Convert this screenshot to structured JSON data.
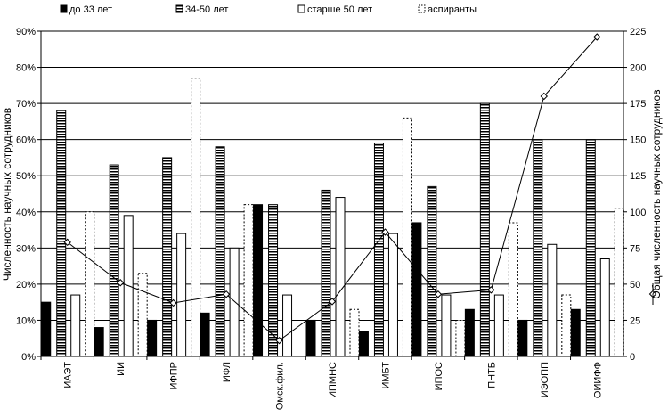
{
  "chart_data": {
    "type": "bar",
    "categories": [
      "ИАЭТ",
      "ИИ",
      "ИФПР",
      "ИФЛ",
      "Омск.фил.",
      "ИПМНС",
      "ИМБТ",
      "ИПОС",
      "ПНТБ",
      "ИЭОПП",
      "ОИИФФ"
    ],
    "series": [
      {
        "name": "до 33 лет",
        "values": [
          15,
          8,
          10,
          12,
          42,
          10,
          7,
          37,
          13,
          10,
          13
        ]
      },
      {
        "name": "34-50 лет",
        "values": [
          68,
          53,
          55,
          58,
          42,
          46,
          59,
          47,
          70,
          60,
          60
        ]
      },
      {
        "name": "старше 50 лет",
        "values": [
          17,
          39,
          34,
          30,
          17,
          44,
          34,
          17,
          17,
          31,
          27
        ]
      },
      {
        "name": "аспиранты",
        "values": [
          40,
          23,
          77,
          42,
          0,
          13,
          66,
          10,
          37,
          17,
          41
        ]
      }
    ],
    "line": {
      "name": "Общая численность научных сотрудников",
      "values": [
        79,
        51,
        37,
        43,
        11,
        38,
        86,
        43,
        46,
        180,
        221
      ]
    },
    "ylabel": "Численность научных сотрудников",
    "y2label": "Общая численность научных сотрудников",
    "ylim": [
      0,
      90
    ],
    "y2lim": [
      0,
      225
    ],
    "yticks": [
      "0%",
      "10%",
      "20%",
      "30%",
      "40%",
      "50%",
      "60%",
      "70%",
      "80%",
      "90%"
    ],
    "y2ticks": [
      "0",
      "25",
      "50",
      "75",
      "100",
      "125",
      "150",
      "175",
      "200",
      "225"
    ],
    "legend_position": "top",
    "grid": true,
    "colors": {
      "dark": "#000000",
      "light": "#ffffff",
      "grid": "#000000"
    }
  }
}
